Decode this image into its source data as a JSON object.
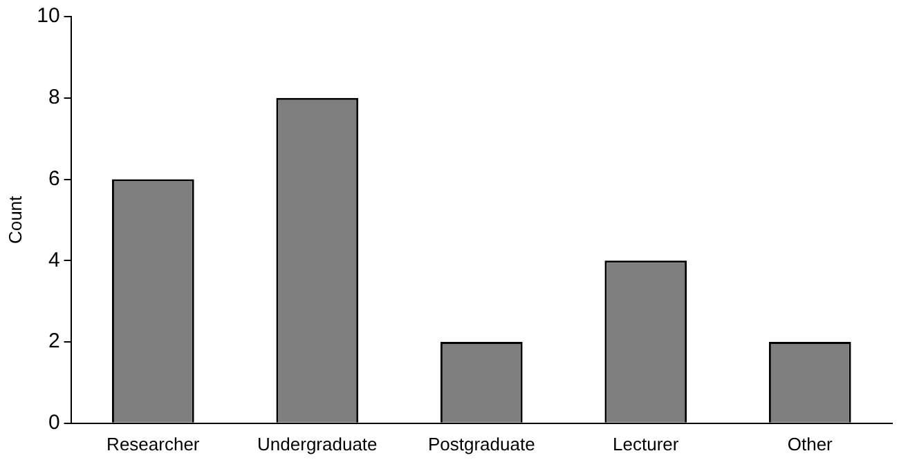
{
  "chart_data": {
    "type": "bar",
    "ylabel": "Count",
    "categories": [
      "Researcher",
      "Undergraduate",
      "Postgraduate",
      "Lecturer",
      "Other"
    ],
    "values": [
      6,
      8,
      2,
      4,
      2
    ],
    "color": "#7f7f7f",
    "ylim": [
      0,
      10
    ],
    "yticks": [
      0,
      2,
      4,
      6,
      8,
      10
    ],
    "grid": false,
    "legend": false
  }
}
